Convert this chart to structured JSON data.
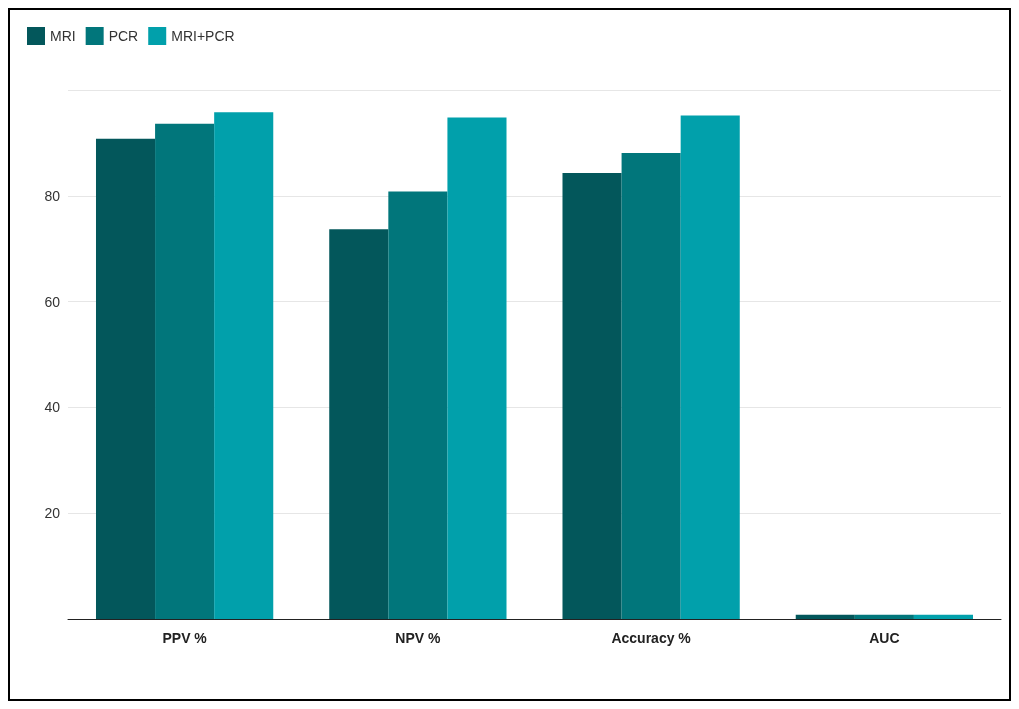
{
  "chart_data": {
    "type": "bar",
    "categories": [
      "PPV %",
      "NPV %",
      "Accuracy %",
      "AUC"
    ],
    "series": [
      {
        "name": "MRI",
        "color": "#03575b",
        "values": [
          90.8,
          73.7,
          84.3,
          0.8
        ]
      },
      {
        "name": "PCR",
        "color": "#01767b",
        "values": [
          93.6,
          80.8,
          88.1,
          0.8
        ]
      },
      {
        "name": "MRI+PCR",
        "color": "#01a0ab",
        "values": [
          95.8,
          94.8,
          95.2,
          0.8
        ]
      }
    ],
    "ylim": [
      0,
      100
    ],
    "yticks": [
      20,
      40,
      60,
      80,
      {
        "value": 100,
        "label": null
      }
    ],
    "grid": "y",
    "legend": "top left"
  }
}
